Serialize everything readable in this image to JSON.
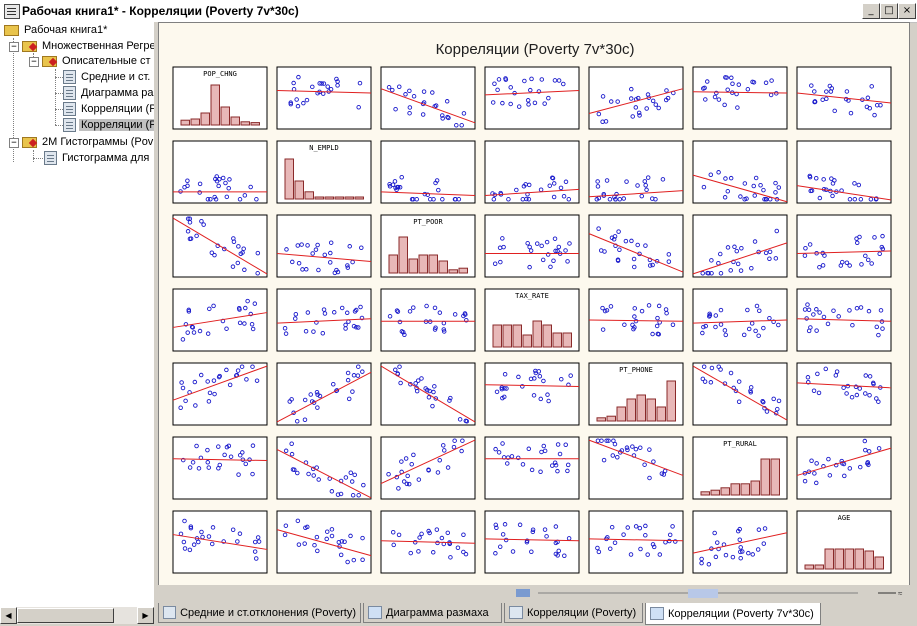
{
  "window": {
    "title": "Рабочая книга1* - Корреляции (Poverty 7v*30c)",
    "min": "_",
    "max": "□",
    "close": "×"
  },
  "tree": {
    "nodes": [
      {
        "label": "Рабочая книга1*"
      },
      {
        "label": "Множественная Регре"
      },
      {
        "label": "Описательные ст"
      },
      {
        "label": "Средние и ст."
      },
      {
        "label": "Диаграмма ра"
      },
      {
        "label": "Корреляции (P"
      },
      {
        "label": "Корреляции (P"
      },
      {
        "label": "2M Гистограммы (Pov"
      },
      {
        "label": "Гистограмма для"
      }
    ]
  },
  "chart_data": {
    "type": "scatter-matrix",
    "title": "Корреляции (Poverty 7v*30c)",
    "variables": [
      "POP_CHNG",
      "N_EMPLD",
      "PT_POOR",
      "TAX_RATE",
      "PT_PHONE",
      "PT_RURAL",
      "AGE"
    ],
    "colors": {
      "points": "#1a1acc",
      "fit_line": "#e02020",
      "hist_fill": "#e8b8b8",
      "hist_stroke": "#8a2a2a"
    },
    "histograms": [
      [
        0.12,
        0.15,
        0.3,
        1.0,
        0.45,
        0.2,
        0.08,
        0.06
      ],
      [
        1.0,
        0.45,
        0.18,
        0.05,
        0.05,
        0.05,
        0.05,
        0.05
      ],
      [
        0.45,
        0.9,
        0.35,
        0.45,
        0.45,
        0.3,
        0.08,
        0.12
      ],
      [
        0.55,
        0.55,
        0.55,
        0.3,
        0.65,
        0.55,
        0.35,
        0.35
      ],
      [
        0.08,
        0.12,
        0.35,
        0.55,
        0.65,
        0.55,
        0.35,
        1.0
      ],
      [
        0.08,
        0.12,
        0.18,
        0.28,
        0.28,
        0.35,
        0.9,
        0.9
      ],
      [
        0.1,
        0.1,
        0.5,
        0.5,
        0.5,
        0.5,
        0.45,
        0.3
      ]
    ],
    "fit_lines": [
      [
        null,
        [
          0.38,
          0.42
        ],
        [
          0.35,
          0.9
        ],
        [
          0.45,
          0.38
        ],
        [
          0.75,
          0.35
        ],
        [
          0.4,
          0.42
        ],
        [
          0.42,
          0.58
        ]
      ],
      [
        [
          0.82,
          0.82
        ],
        null,
        [
          0.82,
          0.88
        ],
        [
          0.88,
          0.78
        ],
        [
          0.9,
          0.8
        ],
        [
          0.55,
          0.98
        ],
        [
          0.72,
          0.95
        ]
      ],
      [
        [
          0.05,
          0.95
        ],
        [
          0.62,
          0.75
        ],
        null,
        [
          0.62,
          0.62
        ],
        [
          0.3,
          0.92
        ],
        [
          0.95,
          0.45
        ],
        [
          0.62,
          0.58
        ]
      ],
      [
        [
          0.62,
          0.38
        ],
        [
          0.55,
          0.48
        ],
        [
          0.52,
          0.52
        ],
        null,
        [
          0.5,
          0.52
        ],
        [
          0.55,
          0.5
        ],
        [
          0.48,
          0.52
        ]
      ],
      [
        [
          0.6,
          0.05
        ],
        [
          0.95,
          0.15
        ],
        [
          0.05,
          0.95
        ],
        [
          0.35,
          0.38
        ],
        null,
        [
          0.05,
          0.92
        ],
        [
          0.32,
          0.4
        ]
      ],
      [
        [
          0.35,
          0.38
        ],
        [
          0.2,
          0.98
        ],
        [
          0.75,
          0.05
        ],
        [
          0.35,
          0.35
        ],
        [
          0.05,
          0.62
        ],
        null,
        [
          0.62,
          0.18
        ]
      ],
      [
        [
          0.38,
          0.62
        ],
        [
          0.3,
          0.72
        ],
        [
          0.48,
          0.52
        ],
        [
          0.45,
          0.48
        ],
        [
          0.45,
          0.48
        ],
        [
          0.68,
          0.35
        ],
        null
      ]
    ]
  },
  "tabs": [
    {
      "label": "Средние и ст.отклонения (Poverty)"
    },
    {
      "label": "Диаграмма размаха"
    },
    {
      "label": "Корреляции (Poverty)"
    },
    {
      "label": "Корреляции (Poverty 7v*30c)"
    }
  ]
}
